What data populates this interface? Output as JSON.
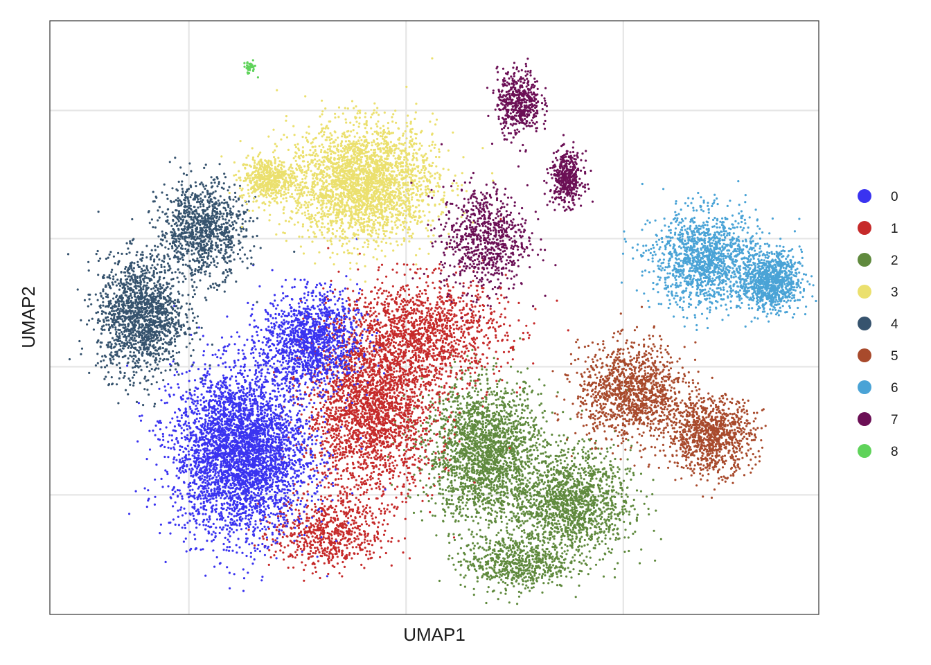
{
  "chart_data": {
    "type": "scatter",
    "title": "",
    "xlabel": "UMAP1",
    "ylabel": "UMAP2",
    "xlim": [
      -9.2,
      8.5
    ],
    "ylim": [
      -5.8,
      8.1
    ],
    "x_gridlines": [
      -6,
      -1,
      4
    ],
    "y_gridlines": [
      -3,
      0,
      3,
      6
    ],
    "x_tick_labels": [],
    "y_tick_labels": [],
    "grid": true,
    "legend_position": "right",
    "series": [
      {
        "name": "0",
        "color": "#3a33f0",
        "approx_points": 5200,
        "clusters": [
          {
            "cx": -4.8,
            "cy": -2.0,
            "sx": 1.25,
            "sy": 1.55,
            "share": 0.75
          },
          {
            "cx": -3.2,
            "cy": 0.6,
            "sx": 0.9,
            "sy": 0.9,
            "share": 0.25
          }
        ]
      },
      {
        "name": "1",
        "color": "#c62a2a",
        "approx_points": 4400,
        "clusters": [
          {
            "cx": -1.8,
            "cy": -1.0,
            "sx": 1.2,
            "sy": 1.6,
            "share": 0.55
          },
          {
            "cx": -0.6,
            "cy": 0.8,
            "sx": 1.5,
            "sy": 1.0,
            "share": 0.3
          },
          {
            "cx": -2.8,
            "cy": -3.9,
            "sx": 1.0,
            "sy": 0.7,
            "share": 0.15
          }
        ]
      },
      {
        "name": "2",
        "color": "#608a3e",
        "approx_points": 4200,
        "clusters": [
          {
            "cx": 0.8,
            "cy": -2.0,
            "sx": 1.1,
            "sy": 1.3,
            "share": 0.5
          },
          {
            "cx": 2.8,
            "cy": -3.2,
            "sx": 1.1,
            "sy": 1.0,
            "share": 0.35
          },
          {
            "cx": 1.5,
            "cy": -4.6,
            "sx": 1.0,
            "sy": 0.5,
            "share": 0.15
          }
        ]
      },
      {
        "name": "3",
        "color": "#ebe06e",
        "approx_points": 3300,
        "clusters": [
          {
            "cx": -2.0,
            "cy": 4.3,
            "sx": 1.35,
            "sy": 1.1,
            "share": 0.85
          },
          {
            "cx": -4.2,
            "cy": 4.4,
            "sx": 0.5,
            "sy": 0.4,
            "share": 0.15
          }
        ]
      },
      {
        "name": "4",
        "color": "#36536e",
        "approx_points": 2600,
        "clusters": [
          {
            "cx": -7.1,
            "cy": 1.2,
            "sx": 0.8,
            "sy": 1.1,
            "share": 0.6
          },
          {
            "cx": -5.7,
            "cy": 3.2,
            "sx": 0.8,
            "sy": 0.9,
            "share": 0.4
          }
        ]
      },
      {
        "name": "5",
        "color": "#a84a2c",
        "approx_points": 2200,
        "clusters": [
          {
            "cx": 4.2,
            "cy": -0.6,
            "sx": 1.0,
            "sy": 0.9,
            "share": 0.55
          },
          {
            "cx": 6.0,
            "cy": -1.6,
            "sx": 0.8,
            "sy": 0.7,
            "share": 0.45
          }
        ]
      },
      {
        "name": "6",
        "color": "#4aa3d6",
        "approx_points": 2300,
        "clusters": [
          {
            "cx": 5.9,
            "cy": 2.5,
            "sx": 1.0,
            "sy": 0.9,
            "share": 0.6
          },
          {
            "cx": 7.4,
            "cy": 2.0,
            "sx": 0.55,
            "sy": 0.55,
            "share": 0.4
          }
        ]
      },
      {
        "name": "7",
        "color": "#6b0f55",
        "approx_points": 1700,
        "clusters": [
          {
            "cx": 0.8,
            "cy": 3.0,
            "sx": 0.8,
            "sy": 1.0,
            "share": 0.45
          },
          {
            "cx": 1.6,
            "cy": 6.2,
            "sx": 0.4,
            "sy": 0.6,
            "share": 0.3
          },
          {
            "cx": 2.7,
            "cy": 4.4,
            "sx": 0.3,
            "sy": 0.5,
            "share": 0.25
          }
        ]
      },
      {
        "name": "8",
        "color": "#5fd35a",
        "approx_points": 40,
        "clusters": [
          {
            "cx": -4.6,
            "cy": 7.0,
            "sx": 0.12,
            "sy": 0.12,
            "share": 1.0
          }
        ]
      }
    ]
  }
}
